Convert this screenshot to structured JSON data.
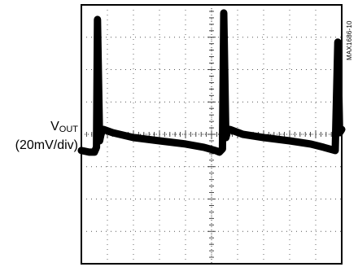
{
  "figure_id": "MAX1686-10",
  "chart_data": {
    "type": "line",
    "title": "",
    "xlabel": "",
    "ylabel_main": "V",
    "ylabel_sub": "OUT",
    "ylabel_scale": "(20mV/div)",
    "x_divisions": 10,
    "y_divisions": 8,
    "ylim": [
      -4,
      4
    ],
    "xlim": [
      0,
      10
    ],
    "grid": true,
    "series": [
      {
        "name": "",
        "x": [
          0.0,
          0.3,
          0.5,
          0.58,
          0.62,
          0.7,
          0.78,
          0.85,
          1.2,
          2.0,
          3.0,
          4.0,
          4.7,
          5.15,
          5.3,
          5.42,
          5.47,
          5.55,
          5.62,
          5.7,
          6.2,
          7.0,
          8.0,
          8.8,
          9.3,
          9.75,
          9.85,
          9.92,
          10.0
        ],
        "y": [
          -0.5,
          -0.55,
          -0.55,
          -0.4,
          3.55,
          -0.2,
          0.1,
          0.15,
          0.05,
          -0.1,
          -0.2,
          -0.3,
          -0.4,
          -0.5,
          -0.55,
          -0.45,
          3.75,
          -0.1,
          0.1,
          0.15,
          0.0,
          -0.1,
          -0.2,
          -0.3,
          -0.4,
          -0.5,
          2.85,
          0.05,
          0.15
        ]
      }
    ]
  }
}
